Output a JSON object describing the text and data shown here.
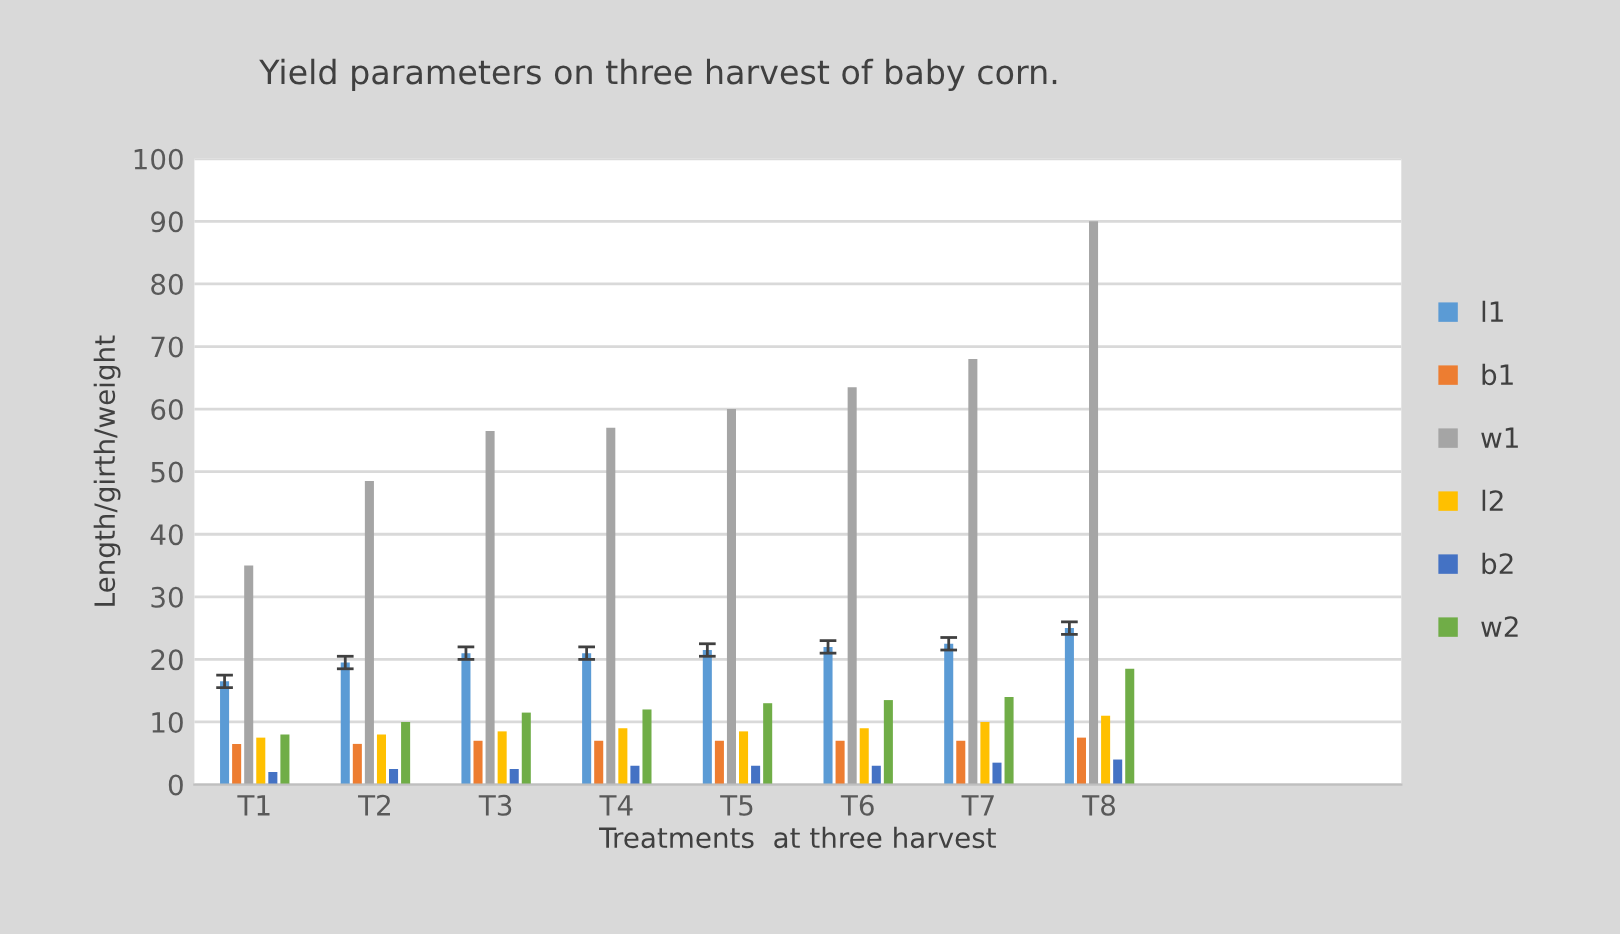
{
  "chart_data": {
    "type": "bar",
    "title": "Yield parameters on three harvest of baby corn.",
    "xlabel": "Treatments  at three harvest",
    "ylabel": "Length/girth/weight",
    "categories": [
      "T1",
      "T2",
      "T3",
      "T4",
      "T5",
      "T6",
      "T7",
      "T8",
      null,
      null
    ],
    "series": [
      {
        "name": "l1",
        "color": "#5b9bd5",
        "values": [
          16.5,
          19.5,
          21,
          21,
          21.5,
          22,
          22.5,
          25,
          null,
          null
        ],
        "errors": [
          1,
          1,
          1,
          1,
          1,
          1,
          1,
          1,
          null,
          null
        ]
      },
      {
        "name": "b1",
        "color": "#ed7d31",
        "values": [
          6.5,
          6.5,
          7,
          7,
          7,
          7,
          7,
          7.5,
          null,
          null
        ]
      },
      {
        "name": "w1",
        "color": "#a5a5a5",
        "values": [
          35,
          48.5,
          56.5,
          57,
          60,
          63.5,
          68,
          90,
          null,
          null
        ]
      },
      {
        "name": "l2",
        "color": "#ffc000",
        "values": [
          7.5,
          8,
          8.5,
          9,
          8.5,
          9,
          10,
          11,
          null,
          null
        ]
      },
      {
        "name": "b2",
        "color": "#4472c4",
        "values": [
          2,
          2.5,
          2.5,
          3,
          3,
          3,
          3.5,
          4,
          null,
          null
        ]
      },
      {
        "name": "w2",
        "color": "#70ad47",
        "values": [
          8,
          10,
          11.5,
          12,
          13,
          13.5,
          14,
          18.5,
          null,
          null
        ]
      }
    ],
    "ylim": [
      0,
      100
    ],
    "yticks": [
      0,
      10,
      20,
      30,
      40,
      50,
      60,
      70,
      80,
      90,
      100
    ],
    "grid": "y",
    "legend": "right"
  }
}
